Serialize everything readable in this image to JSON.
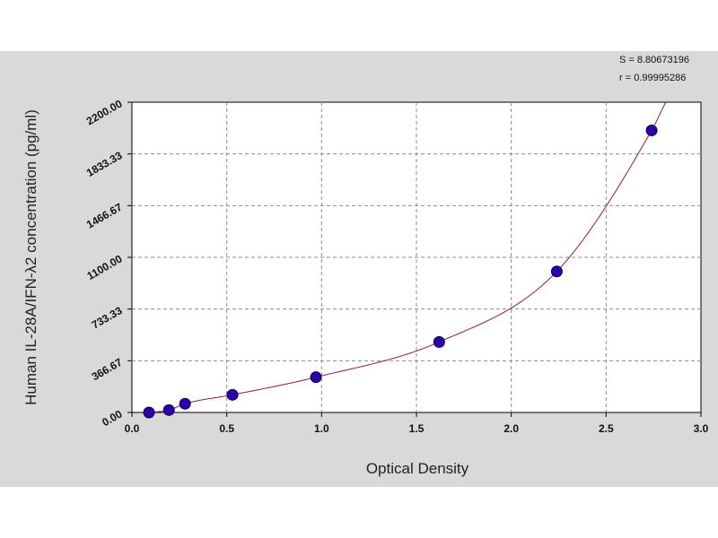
{
  "chart_data": {
    "type": "scatter",
    "xlabel": "Optical Density",
    "ylabel": "Human IL-28A/IFN-λ2 concentration (pg/ml)",
    "xlim": [
      0,
      3.0
    ],
    "ylim": [
      0,
      2200
    ],
    "x_ticks": [
      0,
      0.5,
      1.0,
      1.5,
      2.0,
      2.5,
      3.0
    ],
    "x_tick_labels": [
      "0.0",
      "0.5",
      "1.0",
      "1.5",
      "2.0",
      "2.5",
      "3.0"
    ],
    "y_ticks": [
      0,
      366.67,
      733.33,
      1100,
      1466.67,
      1833.33,
      2200
    ],
    "y_tick_labels": [
      "0.00",
      "366.67",
      "733.33",
      "1100.00",
      "1466.67",
      "1833.33",
      "2200.00"
    ],
    "grid": true,
    "series": [
      {
        "x": [
          0.09,
          0.195,
          0.28,
          0.53,
          0.97,
          1.62,
          2.24,
          2.74
        ],
        "y": [
          0,
          17,
          62,
          125,
          250,
          500,
          1000,
          2000
        ]
      }
    ],
    "fit_line": true,
    "stats": [
      "S = 8.80673196",
      "r = 0.99995286"
    ],
    "colors": {
      "marker_fill": "#2e00a8",
      "marker_edge": "#0a0060",
      "curve": "#8b2030",
      "grid": "#8c8c8c",
      "panel_bg": "#d9d9d9",
      "plot_bg": "#ffffff"
    }
  }
}
